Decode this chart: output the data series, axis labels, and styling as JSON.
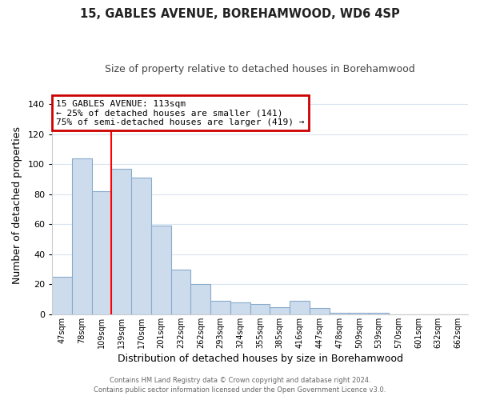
{
  "title": "15, GABLES AVENUE, BOREHAMWOOD, WD6 4SP",
  "subtitle": "Size of property relative to detached houses in Borehamwood",
  "xlabel": "Distribution of detached houses by size in Borehamwood",
  "ylabel": "Number of detached properties",
  "bar_labels": [
    "47sqm",
    "78sqm",
    "109sqm",
    "139sqm",
    "170sqm",
    "201sqm",
    "232sqm",
    "262sqm",
    "293sqm",
    "324sqm",
    "355sqm",
    "385sqm",
    "416sqm",
    "447sqm",
    "478sqm",
    "509sqm",
    "539sqm",
    "570sqm",
    "601sqm",
    "632sqm",
    "662sqm"
  ],
  "bar_heights": [
    25,
    104,
    82,
    97,
    91,
    59,
    30,
    20,
    9,
    8,
    7,
    5,
    9,
    4,
    1,
    1,
    1,
    0,
    0,
    0,
    0
  ],
  "bar_fill_color": "#ccdcec",
  "bar_edge_color": "#88aacc",
  "vline_color": "red",
  "vline_x_index": 2,
  "annotation_text": "15 GABLES AVENUE: 113sqm\n← 25% of detached houses are smaller (141)\n75% of semi-detached houses are larger (419) →",
  "annotation_box_facecolor": "white",
  "annotation_box_edgecolor": "#cc0000",
  "ylim": [
    0,
    145
  ],
  "yticks": [
    0,
    20,
    40,
    60,
    80,
    100,
    120,
    140
  ],
  "footer1": "Contains HM Land Registry data © Crown copyright and database right 2024.",
  "footer2": "Contains public sector information licensed under the Open Government Licence v3.0.",
  "background_color": "white",
  "grid_color": "#d8e4f0",
  "title_color": "#222222",
  "subtitle_color": "#444444",
  "footer_color": "#666666"
}
